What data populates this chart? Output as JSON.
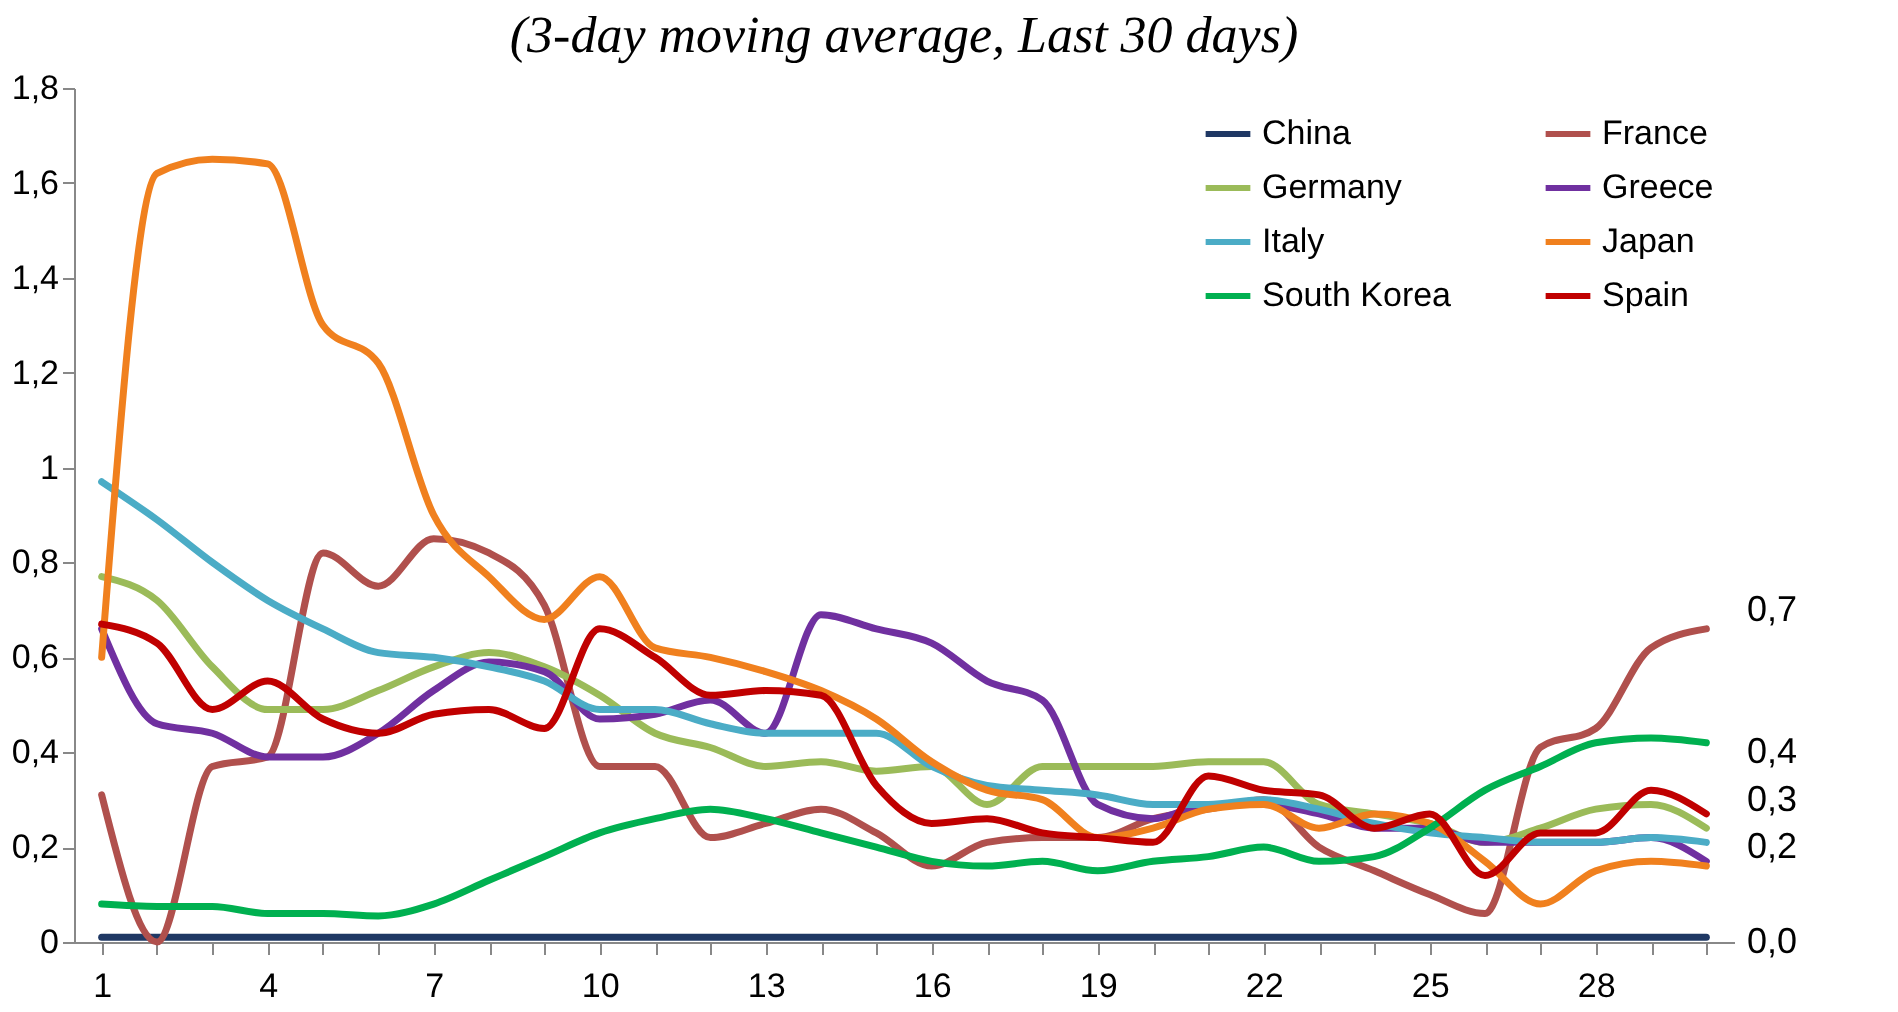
{
  "chart_data": {
    "type": "line",
    "title": "(3-day moving average, Last 30 days)",
    "categories": [
      "1",
      null,
      null,
      "4",
      null,
      null,
      "7",
      null,
      null,
      "10",
      null,
      null,
      "13",
      null,
      null,
      "16",
      null,
      null,
      "19",
      null,
      null,
      "22",
      null,
      null,
      "25",
      null,
      null,
      "28",
      null,
      null
    ],
    "ylim": [
      0,
      1.8
    ],
    "yticks": [
      0,
      {
        "value": 0.2,
        "label": "0,2"
      },
      {
        "value": 0.4,
        "label": "0,4"
      },
      {
        "value": 0.6,
        "label": "0,6"
      },
      {
        "value": 0.8,
        "label": "0,8"
      },
      1,
      {
        "value": 1.2,
        "label": "1,2"
      },
      {
        "value": 1.4,
        "label": "1,4"
      },
      {
        "value": 1.6,
        "label": "1,6"
      },
      {
        "value": 1.8,
        "label": "1,8"
      }
    ],
    "grid": false,
    "legend": "top right",
    "marker": "none",
    "line_style": "solid",
    "series": [
      {
        "name": "China",
        "color": "#1f3864",
        "values": [
          0.01,
          0.01,
          0.01,
          0.01,
          0.01,
          0.01,
          0.01,
          0.01,
          0.01,
          0.01,
          0.01,
          0.01,
          0.01,
          0.01,
          0.01,
          0.01,
          0.01,
          0.01,
          0.01,
          0.01,
          0.01,
          0.01,
          0.01,
          0.01,
          0.01,
          0.01,
          0.01,
          0.01,
          0.01,
          0.01
        ]
      },
      {
        "name": "France",
        "color": "#b0504d",
        "values": [
          0.31,
          0.0,
          0.37,
          0.39,
          0.82,
          0.75,
          0.85,
          0.82,
          0.71,
          0.37,
          0.37,
          0.22,
          0.25,
          0.28,
          0.23,
          0.16,
          0.21,
          0.22,
          0.22,
          0.26,
          0.28,
          0.3,
          0.2,
          0.15,
          0.1,
          0.06,
          0.41,
          0.45,
          0.62,
          0.66
        ]
      },
      {
        "name": "Germany",
        "color": "#9bbb59",
        "values": [
          0.77,
          0.72,
          0.58,
          0.49,
          0.49,
          0.53,
          0.58,
          0.61,
          0.58,
          0.52,
          0.44,
          0.41,
          0.37,
          0.38,
          0.36,
          0.37,
          0.29,
          0.37,
          0.37,
          0.37,
          0.38,
          0.38,
          0.29,
          0.27,
          0.25,
          0.21,
          0.24,
          0.28,
          0.29,
          0.24
        ]
      },
      {
        "name": "Greece",
        "color": "#7030a0",
        "values": [
          0.66,
          0.46,
          0.44,
          0.39,
          0.39,
          0.44,
          0.53,
          0.59,
          0.57,
          0.47,
          0.48,
          0.51,
          0.44,
          0.69,
          0.66,
          0.63,
          0.55,
          0.51,
          0.29,
          0.26,
          0.29,
          0.29,
          0.27,
          0.24,
          0.24,
          0.21,
          0.21,
          0.21,
          0.22,
          0.17
        ]
      },
      {
        "name": "Italy",
        "color": "#4bacc6",
        "values": [
          0.97,
          0.89,
          0.8,
          0.72,
          0.66,
          0.61,
          0.6,
          0.58,
          0.55,
          0.49,
          0.49,
          0.46,
          0.44,
          0.44,
          0.44,
          0.37,
          0.33,
          0.32,
          0.31,
          0.29,
          0.29,
          0.3,
          0.28,
          0.25,
          0.23,
          0.22,
          0.21,
          0.21,
          0.22,
          0.21
        ]
      },
      {
        "name": "Japan",
        "color": "#f0801e",
        "values": [
          0.6,
          1.62,
          1.65,
          1.64,
          1.3,
          1.22,
          0.9,
          0.77,
          0.68,
          0.77,
          0.62,
          0.6,
          0.57,
          0.53,
          0.47,
          0.38,
          0.32,
          0.3,
          0.22,
          0.24,
          0.28,
          0.29,
          0.24,
          0.27,
          0.25,
          0.17,
          0.08,
          0.15,
          0.17,
          0.16
        ]
      },
      {
        "name": "South Korea",
        "color": "#00b050",
        "values": [
          0.08,
          0.075,
          0.075,
          0.06,
          0.06,
          0.055,
          0.08,
          0.13,
          0.18,
          0.23,
          0.26,
          0.28,
          0.26,
          0.23,
          0.2,
          0.17,
          0.16,
          0.17,
          0.15,
          0.17,
          0.18,
          0.2,
          0.17,
          0.18,
          0.24,
          0.32,
          0.37,
          0.42,
          0.43,
          0.42
        ]
      },
      {
        "name": "Spain",
        "color": "#c00000",
        "values": [
          0.67,
          0.63,
          0.49,
          0.55,
          0.47,
          0.44,
          0.48,
          0.49,
          0.45,
          0.66,
          0.6,
          0.52,
          0.53,
          0.52,
          0.33,
          0.25,
          0.26,
          0.23,
          0.22,
          0.21,
          0.35,
          0.32,
          0.31,
          0.24,
          0.27,
          0.14,
          0.23,
          0.23,
          0.32,
          0.27
        ]
      }
    ],
    "y2lim": [
      0,
      1.8
    ],
    "y2ticks": [
      {
        "value": 0.7,
        "label": "0,7"
      },
      {
        "value": 0.4,
        "label": "0,4"
      },
      {
        "value": 0.3,
        "label": "0,3"
      },
      {
        "value": 0.2,
        "label": "0,2"
      },
      {
        "value": 0,
        "label": "0,0"
      }
    ]
  }
}
